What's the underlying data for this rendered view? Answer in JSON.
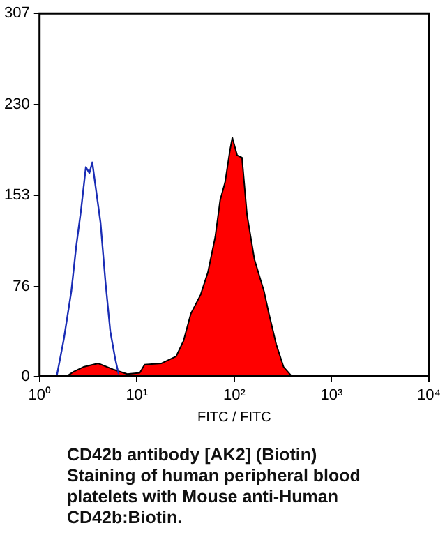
{
  "chart_data": {
    "type": "area",
    "xlabel": "FITC / FITC",
    "log": "x",
    "xlim": [
      1,
      10000
    ],
    "xticks": [
      {
        "value": 1,
        "label": "10⁰"
      },
      {
        "value": 10,
        "label": "10¹"
      },
      {
        "value": 100,
        "label": "10²"
      },
      {
        "value": 1000,
        "label": "10³"
      },
      {
        "value": 10000,
        "label": "10⁴"
      }
    ],
    "ylim": [
      0,
      307
    ],
    "yticks": [
      0,
      76,
      153,
      230,
      307
    ],
    "grid": false,
    "legend": false,
    "series": [
      {
        "color": "#ff0000",
        "x": [
          1.7,
          1.89,
          2.24,
          2.83,
          4.0,
          5.65,
          7.98,
          10.7,
          12.0,
          17.9,
          25.3,
          30.1,
          35.8,
          45.1,
          53.6,
          63.8,
          71.6,
          80.4,
          90.2,
          95.5,
          107,
          120,
          135,
          161,
          202,
          227,
          270,
          321,
          381,
          428
        ],
        "values": [
          0,
          0,
          4,
          8,
          11,
          6,
          2,
          3,
          10,
          11,
          17,
          30,
          53,
          69,
          88,
          118,
          149,
          164,
          191,
          202,
          187,
          185,
          137,
          99,
          72,
          53,
          27,
          8,
          1,
          0
        ]
      },
      {
        "type": "line",
        "color": "#1a2db5",
        "x": [
          1.5,
          1.78,
          2.12,
          2.38,
          2.67,
          2.99,
          3.25,
          3.48,
          3.77,
          4.23,
          4.75,
          5.33,
          5.98,
          6.49
        ],
        "values": [
          0,
          32,
          72,
          110,
          141,
          177,
          172,
          181,
          160,
          130,
          80,
          38,
          15,
          2
        ]
      }
    ],
    "annotations": [
      "CD42b antibody [AK2] (Biotin)",
      "Staining of human peripheral blood",
      "platelets with Mouse anti-Human",
      "CD42b:Biotin."
    ]
  }
}
